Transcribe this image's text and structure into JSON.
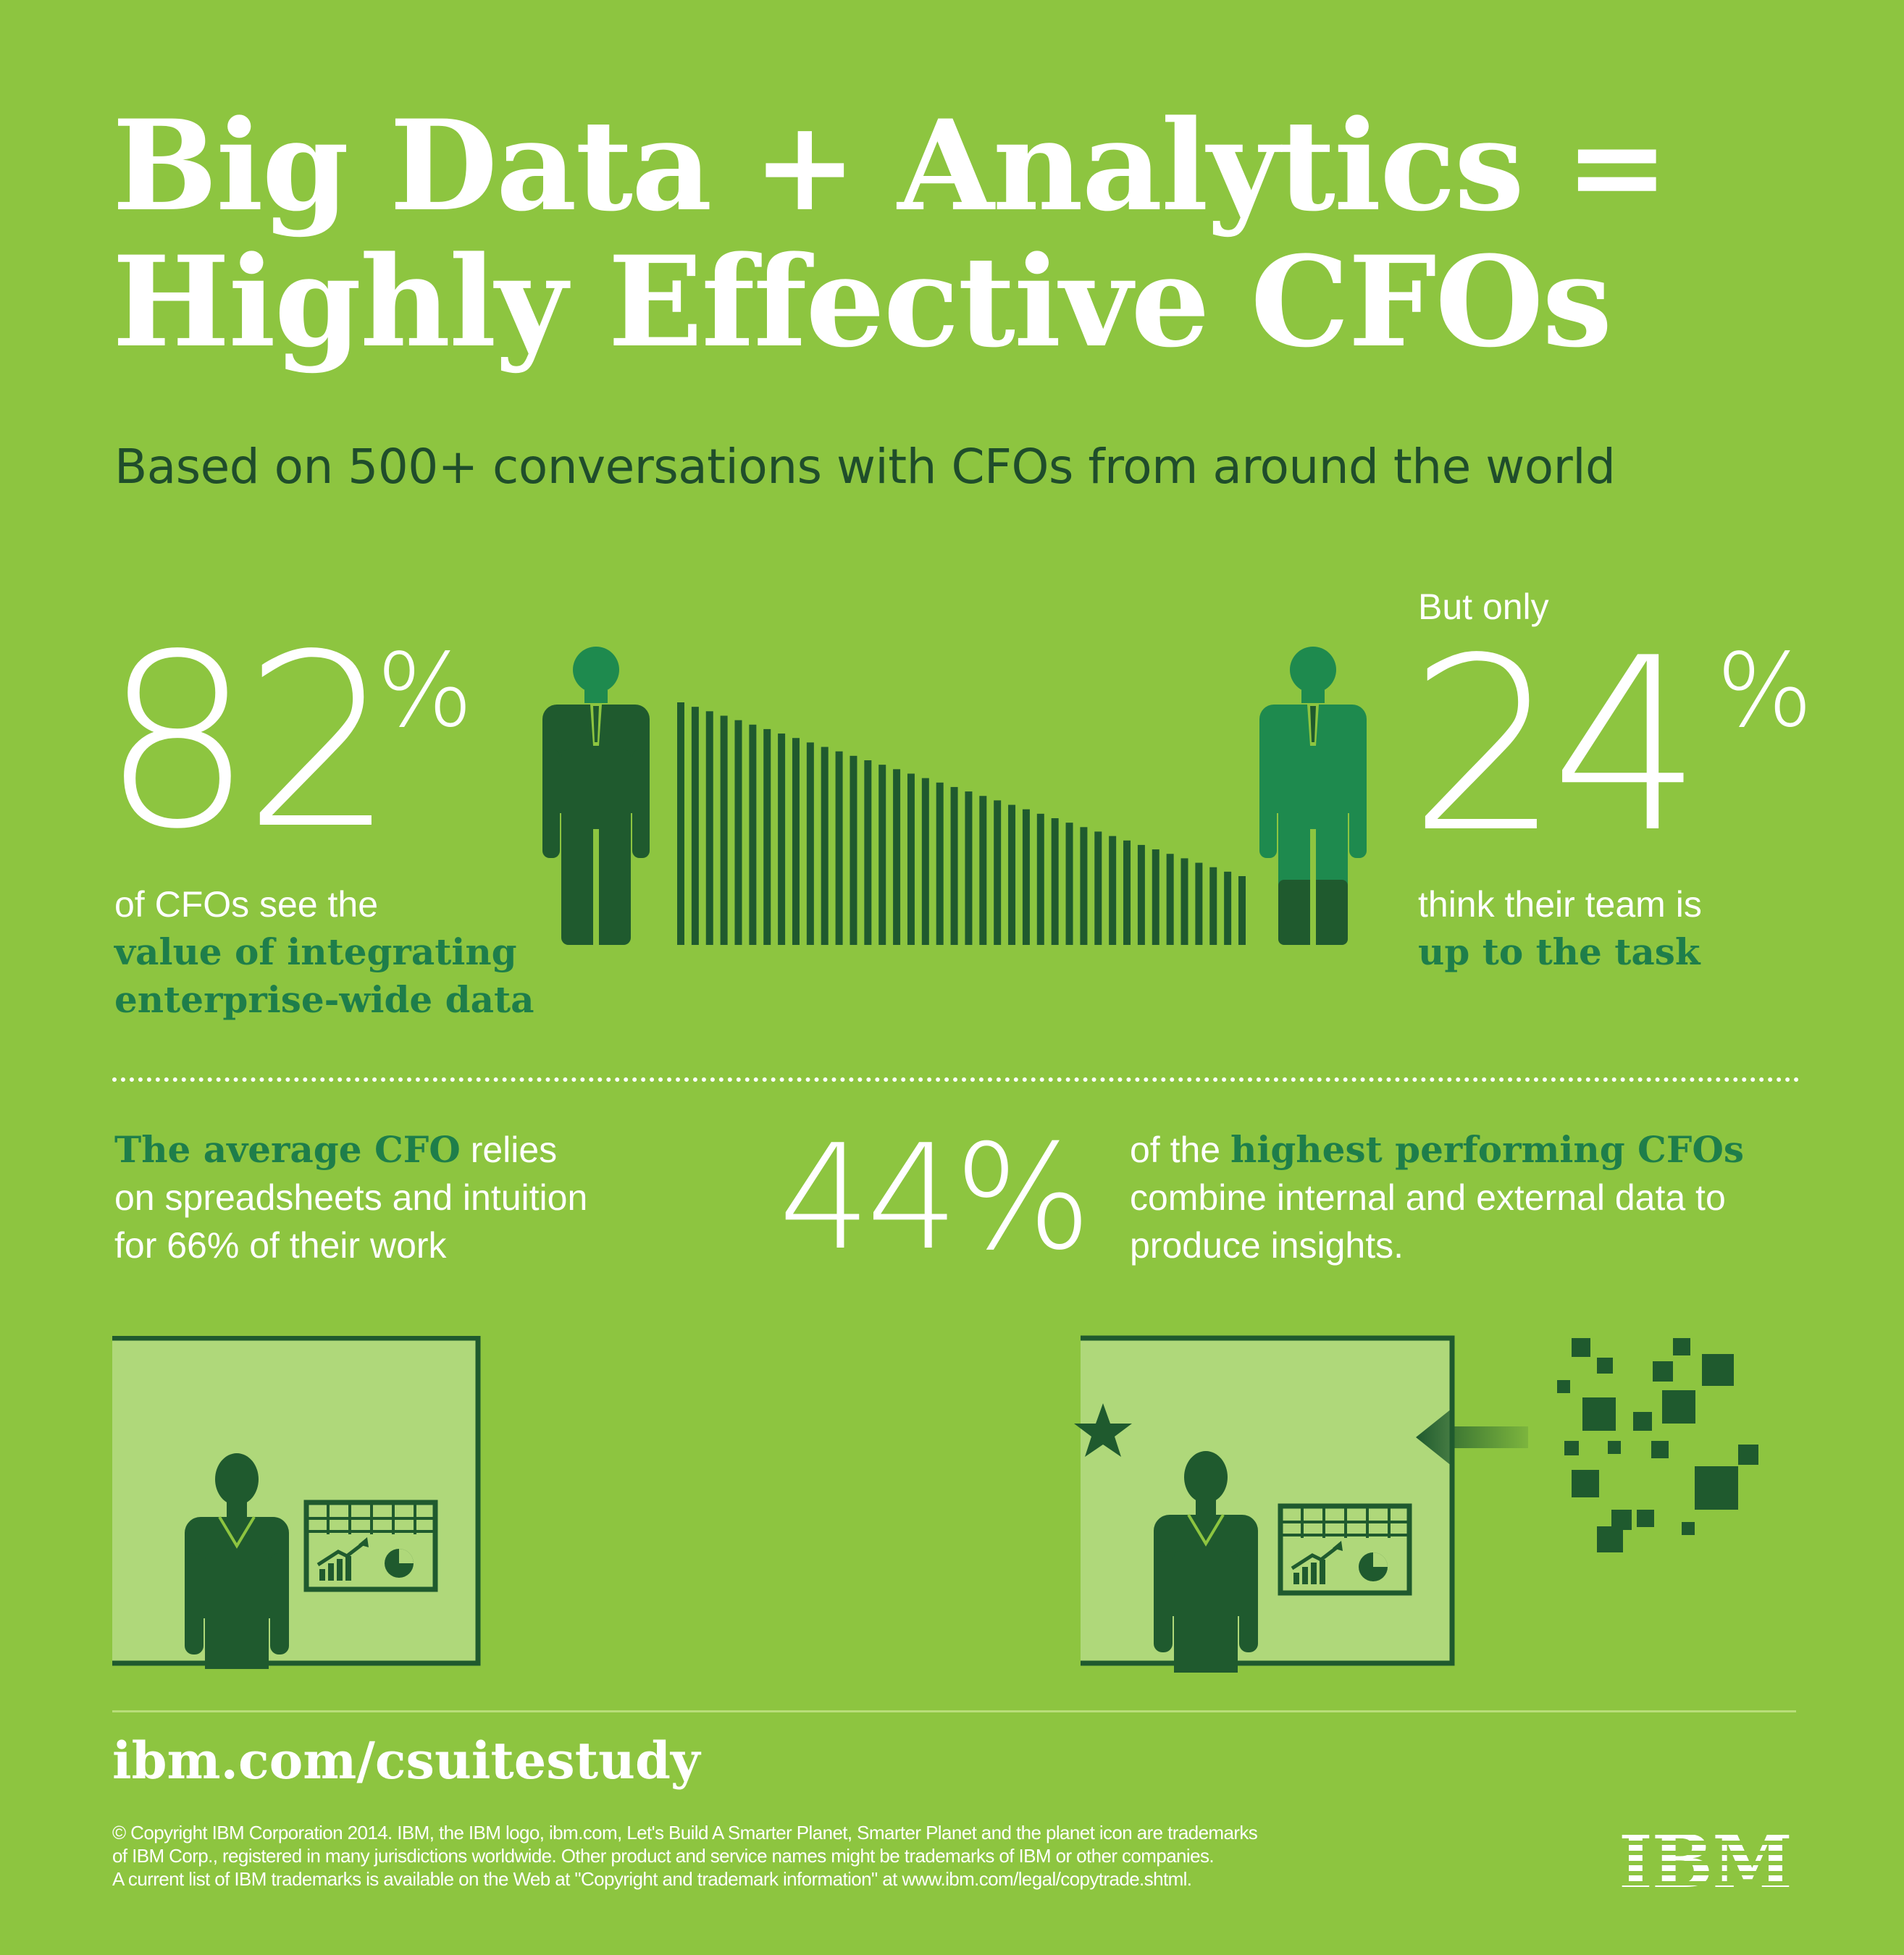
{
  "title": {
    "line1": "Big Data + Analytics =",
    "line2": "Highly Effective CFOs"
  },
  "subtitle": "Based on 500+ conversations with CFOs from around the world",
  "stat_82": {
    "number": "82",
    "percent_sign": "%",
    "line1": "of CFOs see the",
    "line2": "value of integrating",
    "line3": "enterprise-wide data"
  },
  "stat_24": {
    "prefix": "But only",
    "number": "24",
    "percent_sign": "%",
    "line1": "think their team is",
    "line2": "up to the task"
  },
  "stat_66": {
    "accent": "The average CFO",
    "line1_rest": " relies",
    "line2": "on spreadsheets and intuition",
    "line3": "for 66% of their work"
  },
  "stat_44": {
    "number": "44%",
    "line1_pre": "of the ",
    "line1_accent": "highest performing CFOs",
    "line2": "combine internal and external data to",
    "line3": "produce insights."
  },
  "footer": {
    "url": "ibm.com/csuitestudy",
    "copyright_lines": [
      "© Copyright IBM Corporation 2014. IBM, the IBM logo, ibm.com, Let's Build A Smarter Planet, Smarter Planet and the planet icon are trademarks",
      "of IBM Corp., registered in many jurisdictions worldwide. Other product and service names might be trademarks of IBM or other companies.",
      "A current list of IBM trademarks is available on the Web at \"Copyright and trademark information\" at www.ibm.com/legal/copytrade.shtml."
    ],
    "logo_text": "IBM"
  },
  "colors": {
    "background": "#8dc540",
    "dark_green": "#1f5a2e",
    "mid_green": "#1e8a4e",
    "light_panel": "#afd87a",
    "accent_text": "#1e7e4a"
  },
  "icons": [
    "person-icon",
    "person-icon",
    "bar-stripes-graphic",
    "woman-icon",
    "chart-board-icon",
    "star-icon",
    "arrow-left-icon",
    "data-squares-graphic",
    "ibm-logo"
  ]
}
